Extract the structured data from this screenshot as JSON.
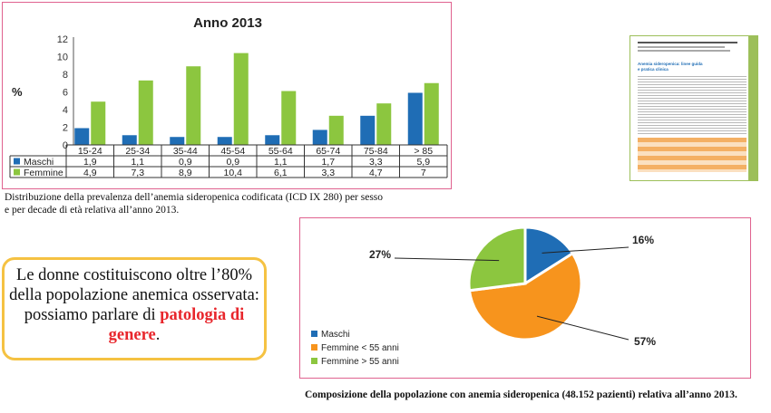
{
  "chart_data": [
    {
      "type": "bar",
      "title": "Anno 2013",
      "ylabel": "%",
      "ylim": [
        0,
        12
      ],
      "yticks": [
        0,
        2,
        4,
        6,
        8,
        10,
        12
      ],
      "categories": [
        "15-24",
        "25-34",
        "35-44",
        "45-54",
        "55-64",
        "65-74",
        "75-84",
        "> 85"
      ],
      "series": [
        {
          "name": "Maschi",
          "color": "#1f6db5",
          "values": [
            1.9,
            1.1,
            0.9,
            0.9,
            1.1,
            1.7,
            3.3,
            5.9
          ],
          "labels": [
            "1,9",
            "1,1",
            "0,9",
            "0,9",
            "1,1",
            "1,7",
            "3,3",
            "5,9"
          ]
        },
        {
          "name": "Femmine",
          "color": "#8cc63f",
          "values": [
            4.9,
            7.3,
            8.9,
            10.4,
            6.1,
            3.3,
            4.7,
            7
          ],
          "labels": [
            "4,9",
            "7,3",
            "8,9",
            "10,4",
            "6,1",
            "3,3",
            "4,7",
            "7"
          ]
        }
      ],
      "grid": false,
      "legend": "data-table"
    },
    {
      "type": "pie",
      "slices": [
        {
          "name": "Maschi",
          "value": 16,
          "label": "16%",
          "color": "#1f6db5"
        },
        {
          "name": "Femmine < 55 anni",
          "value": 57,
          "label": "57%",
          "color": "#f7941d"
        },
        {
          "name": "Femmine > 55 anni",
          "value": 27,
          "label": "27%",
          "color": "#8cc63f"
        }
      ],
      "legend": "bottom-left"
    }
  ],
  "captions": {
    "bar": "Distribuzione della prevalenza dell’anemia sideropenica codificata (ICD IX 280) per sesso e per decade di età relativa all’anno 2013.",
    "pie": "Composizione della popolazione con anemia sideropenica (48.152 pazienti) relativa all’anno 2013."
  },
  "callout": {
    "text_before": "Le donne costituiscono oltre l’80% della popolazione anemica osservata: possiamo parlare di",
    "highlight": "patologia di genere",
    "text_after": ".",
    "highlight_color": "#e8262c",
    "border_color": "#f5c242"
  },
  "thumbnail": {
    "title": "Anemia sideropenica: linee guida e pratica clinica",
    "accent_color": "#9dbf5a",
    "title_color": "#1f6db5"
  }
}
